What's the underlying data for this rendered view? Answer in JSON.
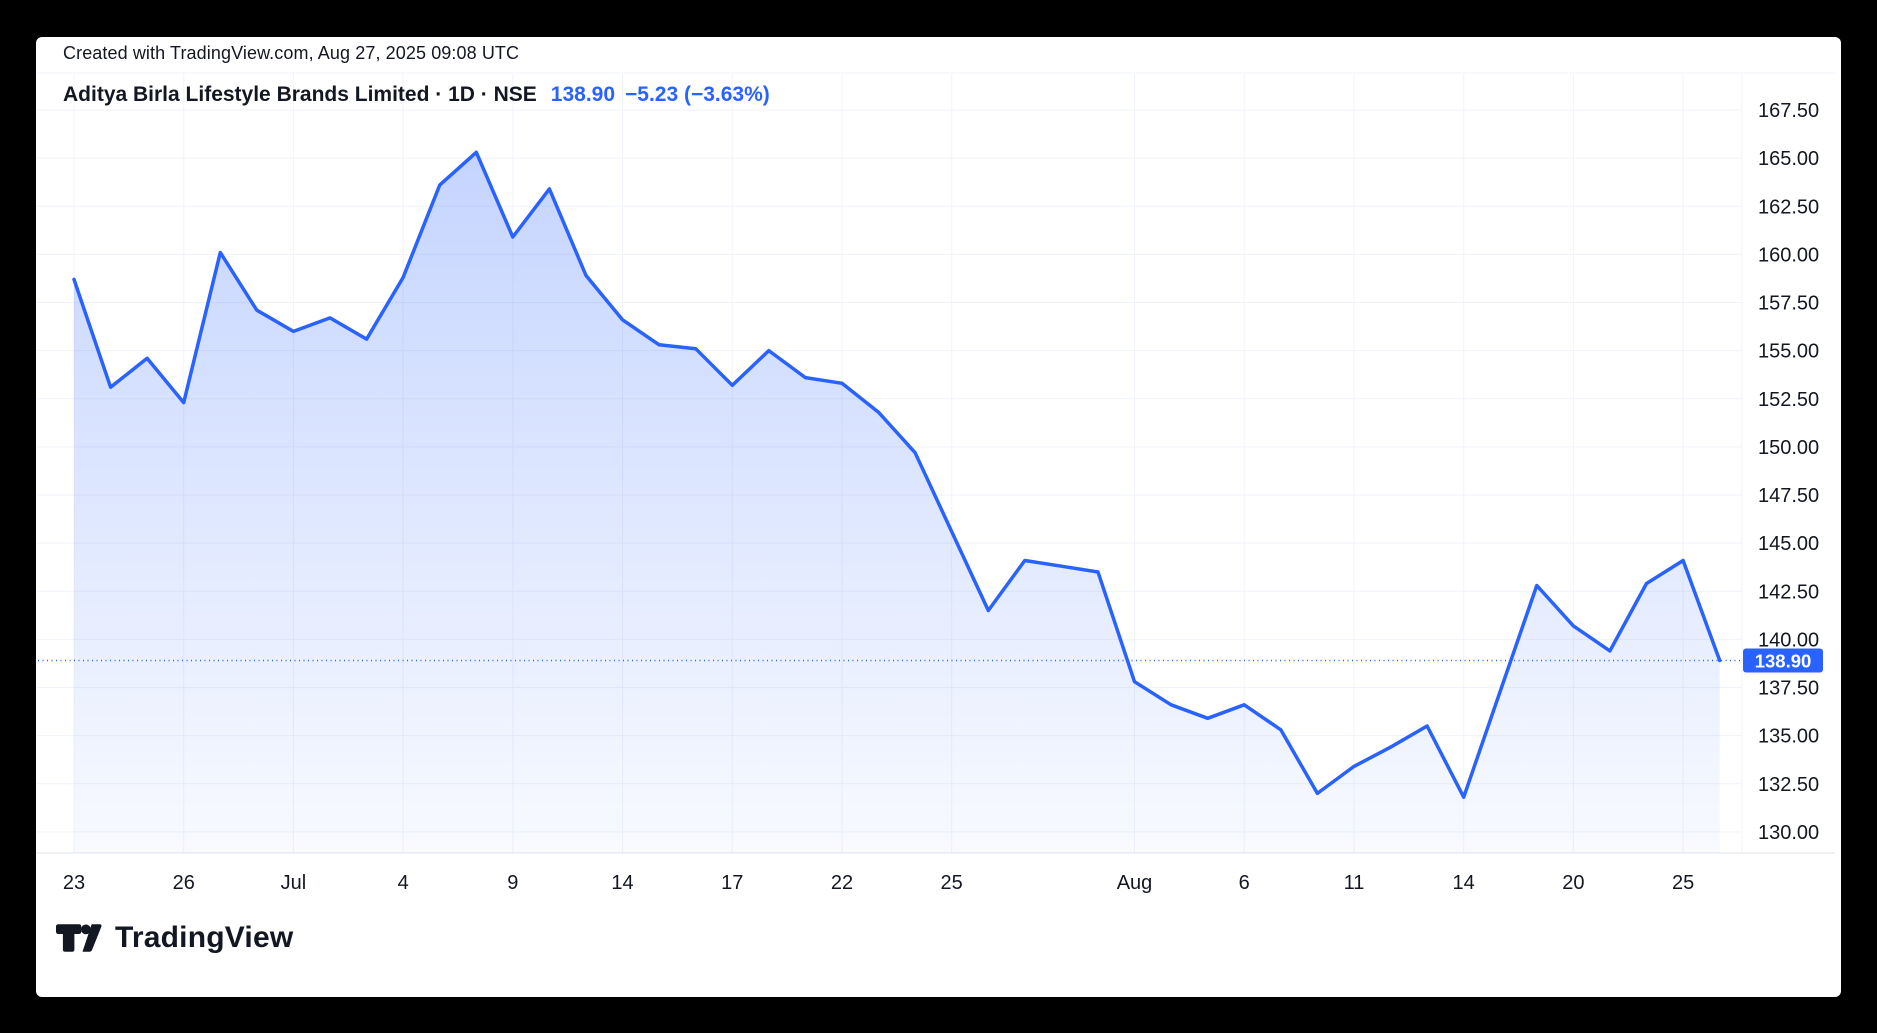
{
  "frame": {
    "background": "#000000",
    "card_background": "#ffffff"
  },
  "attribution": {
    "text": "Created with TradingView.com, Aug 27, 2025 09:08 UTC"
  },
  "header": {
    "symbol_title": "Aditya Birla Lifestyle Brands Limited · 1D · NSE",
    "price": "138.90",
    "change": "−5.23 (−3.63%)",
    "accent_color": "#2962FF",
    "text_color": "#131722"
  },
  "logo": {
    "text": "TradingView"
  },
  "chart_data": {
    "type": "area",
    "title": "Aditya Birla Lifestyle Brands Limited",
    "interval": "1D",
    "exchange": "NSE",
    "line_color": "#2962FF",
    "fill_top_color": "rgba(41,98,255,0.27)",
    "fill_bottom_color": "rgba(41,98,255,0.03)",
    "grid": true,
    "legend_position": "none",
    "x": [
      "Jun 23",
      "Jun 24",
      "Jun 25",
      "Jun 26",
      "Jun 27",
      "Jun 30",
      "Jul 1",
      "Jul 2",
      "Jul 3",
      "Jul 4",
      "Jul 7",
      "Jul 8",
      "Jul 9",
      "Jul 10",
      "Jul 11",
      "Jul 14",
      "Jul 15",
      "Jul 16",
      "Jul 17",
      "Jul 18",
      "Jul 21",
      "Jul 22",
      "Jul 23",
      "Jul 24",
      "Jul 25",
      "Jul 28",
      "Jul 29",
      "Jul 30",
      "Jul 31",
      "Aug 1",
      "Aug 4",
      "Aug 5",
      "Aug 6",
      "Aug 7",
      "Aug 8",
      "Aug 11",
      "Aug 12",
      "Aug 13",
      "Aug 14",
      "Aug 18",
      "Aug 19",
      "Aug 20",
      "Aug 21",
      "Aug 22",
      "Aug 25",
      "Aug 26"
    ],
    "values": [
      158.7,
      153.1,
      154.6,
      152.3,
      160.1,
      157.1,
      156.0,
      156.7,
      155.6,
      158.8,
      163.6,
      165.3,
      160.9,
      163.4,
      158.9,
      156.6,
      155.3,
      155.1,
      153.2,
      155.0,
      153.6,
      153.3,
      151.8,
      149.7,
      145.6,
      141.5,
      144.1,
      143.8,
      143.5,
      137.8,
      136.6,
      135.9,
      136.6,
      135.3,
      132.0,
      133.4,
      134.4,
      135.5,
      131.8,
      137.3,
      142.8,
      140.7,
      139.4,
      142.9,
      144.1,
      138.9
    ],
    "last_price": 138.9,
    "last_price_label": "138.90",
    "previous_close": 144.13,
    "ylim": [
      130.0,
      167.5
    ],
    "ytick_step": 2.5,
    "y_ticks": [
      "167.50",
      "165.00",
      "162.50",
      "160.00",
      "157.50",
      "155.00",
      "152.50",
      "150.00",
      "147.50",
      "145.00",
      "142.50",
      "140.00",
      "137.50",
      "135.00",
      "132.50",
      "130.00"
    ],
    "x_ticks": [
      {
        "label": "23",
        "i": 0
      },
      {
        "label": "26",
        "i": 3
      },
      {
        "label": "Jul",
        "i": 6
      },
      {
        "label": "4",
        "i": 9
      },
      {
        "label": "9",
        "i": 12
      },
      {
        "label": "14",
        "i": 15
      },
      {
        "label": "17",
        "i": 18
      },
      {
        "label": "22",
        "i": 21
      },
      {
        "label": "25",
        "i": 24
      },
      {
        "label": "Aug",
        "i": 29
      },
      {
        "label": "6",
        "i": 32
      },
      {
        "label": "11",
        "i": 35
      },
      {
        "label": "14",
        "i": 38
      },
      {
        "label": "20",
        "i": 41
      },
      {
        "label": "25",
        "i": 44
      }
    ]
  }
}
